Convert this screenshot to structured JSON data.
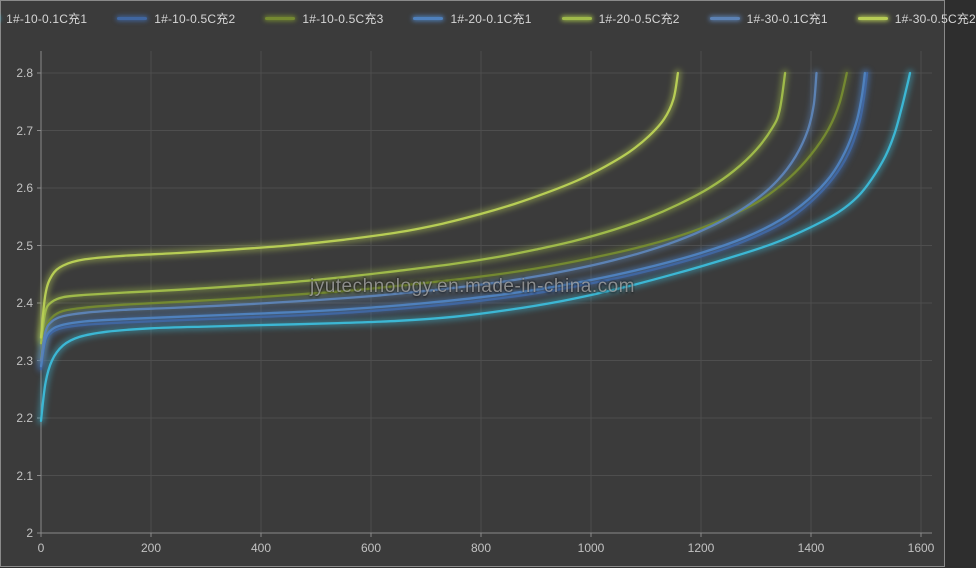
{
  "watermark": "jyutechnology.en.made-in-china.com",
  "colors": {
    "background": "#3b3b3b",
    "grid": "#4e4e4e",
    "axis": "#8a8a8a",
    "tick_label": "#c2c2c2",
    "legend_text": "#d6d6d6",
    "watermark": "#9e9e9e"
  },
  "chart_data": {
    "type": "line",
    "title": "",
    "xlabel": "",
    "ylabel": "",
    "xlim": [
      0,
      1600
    ],
    "ylim": [
      2.0,
      2.8
    ],
    "grid": true,
    "legend_position": "top",
    "x_ticks": [
      {
        "label": "0",
        "value": 0
      },
      {
        "label": "200",
        "value": 200
      },
      {
        "label": "400",
        "value": 400
      },
      {
        "label": "600",
        "value": 600
      },
      {
        "label": "800",
        "value": 800
      },
      {
        "label": "1000",
        "value": 1000
      },
      {
        "label": "1200",
        "value": 1200
      },
      {
        "label": "1400",
        "value": 1400
      },
      {
        "label": "1600",
        "value": 1600
      }
    ],
    "y_ticks": [
      {
        "label": "2",
        "value": 2.0
      },
      {
        "label": "2.1",
        "value": 2.1
      },
      {
        "label": "2.2",
        "value": 2.2
      },
      {
        "label": "2.3",
        "value": 2.3
      },
      {
        "label": "2.4",
        "value": 2.4
      },
      {
        "label": "2.5",
        "value": 2.5
      },
      {
        "label": "2.6",
        "value": 2.6
      },
      {
        "label": "2.7",
        "value": 2.7
      },
      {
        "label": "2.8",
        "value": 2.8
      }
    ],
    "series": [
      {
        "name": "1#-10-0.1C充1",
        "color": "#3cb7d4",
        "points": [
          [
            0,
            2.195
          ],
          [
            8,
            2.26
          ],
          [
            20,
            2.3
          ],
          [
            40,
            2.326
          ],
          [
            70,
            2.341
          ],
          [
            120,
            2.35
          ],
          [
            200,
            2.356
          ],
          [
            300,
            2.359
          ],
          [
            420,
            2.362
          ],
          [
            540,
            2.365
          ],
          [
            650,
            2.369
          ],
          [
            750,
            2.376
          ],
          [
            850,
            2.388
          ],
          [
            950,
            2.404
          ],
          [
            1050,
            2.425
          ],
          [
            1150,
            2.45
          ],
          [
            1250,
            2.478
          ],
          [
            1330,
            2.503
          ],
          [
            1400,
            2.532
          ],
          [
            1450,
            2.558
          ],
          [
            1485,
            2.585
          ],
          [
            1510,
            2.615
          ],
          [
            1535,
            2.655
          ],
          [
            1552,
            2.695
          ],
          [
            1565,
            2.74
          ],
          [
            1574,
            2.775
          ],
          [
            1580,
            2.8
          ]
        ]
      },
      {
        "name": "1#-10-0.5C充2",
        "color": "#4066a0",
        "points": [
          [
            0,
            2.285
          ],
          [
            8,
            2.332
          ],
          [
            20,
            2.349
          ],
          [
            40,
            2.357
          ],
          [
            80,
            2.362
          ],
          [
            150,
            2.366
          ],
          [
            250,
            2.37
          ],
          [
            380,
            2.375
          ],
          [
            500,
            2.38
          ],
          [
            600,
            2.386
          ],
          [
            700,
            2.394
          ],
          [
            800,
            2.404
          ],
          [
            900,
            2.417
          ],
          [
            1000,
            2.434
          ],
          [
            1100,
            2.455
          ],
          [
            1200,
            2.481
          ],
          [
            1280,
            2.508
          ],
          [
            1350,
            2.54
          ],
          [
            1400,
            2.576
          ],
          [
            1440,
            2.617
          ],
          [
            1468,
            2.66
          ],
          [
            1487,
            2.71
          ],
          [
            1496,
            2.755
          ],
          [
            1502,
            2.8
          ]
        ]
      },
      {
        "name": "1#-10-0.5C充3",
        "color": "#748931",
        "points": [
          [
            0,
            2.305
          ],
          [
            8,
            2.355
          ],
          [
            20,
            2.375
          ],
          [
            40,
            2.386
          ],
          [
            80,
            2.392
          ],
          [
            150,
            2.397
          ],
          [
            250,
            2.402
          ],
          [
            380,
            2.409
          ],
          [
            500,
            2.417
          ],
          [
            600,
            2.425
          ],
          [
            700,
            2.435
          ],
          [
            800,
            2.446
          ],
          [
            900,
            2.46
          ],
          [
            1000,
            2.478
          ],
          [
            1100,
            2.5
          ],
          [
            1180,
            2.523
          ],
          [
            1250,
            2.55
          ],
          [
            1310,
            2.58
          ],
          [
            1360,
            2.617
          ],
          [
            1400,
            2.658
          ],
          [
            1432,
            2.703
          ],
          [
            1452,
            2.748
          ],
          [
            1465,
            2.8
          ]
        ]
      },
      {
        "name": "1#-20-0.1C充1",
        "color": "#4f81bd",
        "points": [
          [
            0,
            2.29
          ],
          [
            8,
            2.337
          ],
          [
            20,
            2.354
          ],
          [
            40,
            2.362
          ],
          [
            80,
            2.368
          ],
          [
            150,
            2.372
          ],
          [
            250,
            2.376
          ],
          [
            380,
            2.381
          ],
          [
            500,
            2.386
          ],
          [
            600,
            2.392
          ],
          [
            700,
            2.4
          ],
          [
            800,
            2.41
          ],
          [
            900,
            2.423
          ],
          [
            1000,
            2.44
          ],
          [
            1100,
            2.461
          ],
          [
            1200,
            2.487
          ],
          [
            1280,
            2.514
          ],
          [
            1345,
            2.545
          ],
          [
            1395,
            2.58
          ],
          [
            1435,
            2.62
          ],
          [
            1462,
            2.663
          ],
          [
            1482,
            2.713
          ],
          [
            1492,
            2.757
          ],
          [
            1498,
            2.8
          ]
        ]
      },
      {
        "name": "1#-20-0.5C充2",
        "color": "#9fba4a",
        "points": [
          [
            0,
            2.33
          ],
          [
            8,
            2.385
          ],
          [
            20,
            2.402
          ],
          [
            40,
            2.41
          ],
          [
            80,
            2.414
          ],
          [
            150,
            2.418
          ],
          [
            250,
            2.423
          ],
          [
            350,
            2.429
          ],
          [
            450,
            2.436
          ],
          [
            550,
            2.445
          ],
          [
            650,
            2.456
          ],
          [
            750,
            2.468
          ],
          [
            830,
            2.48
          ],
          [
            900,
            2.493
          ],
          [
            970,
            2.508
          ],
          [
            1040,
            2.527
          ],
          [
            1100,
            2.547
          ],
          [
            1160,
            2.572
          ],
          [
            1215,
            2.6
          ],
          [
            1260,
            2.63
          ],
          [
            1300,
            2.666
          ],
          [
            1330,
            2.705
          ],
          [
            1343,
            2.735
          ],
          [
            1353,
            2.8
          ]
        ]
      },
      {
        "name": "1#-30-0.1C充1",
        "color": "#5c82b4",
        "points": [
          [
            0,
            2.3
          ],
          [
            8,
            2.35
          ],
          [
            20,
            2.368
          ],
          [
            40,
            2.377
          ],
          [
            80,
            2.383
          ],
          [
            150,
            2.388
          ],
          [
            250,
            2.392
          ],
          [
            380,
            2.398
          ],
          [
            500,
            2.405
          ],
          [
            600,
            2.412
          ],
          [
            700,
            2.421
          ],
          [
            800,
            2.432
          ],
          [
            880,
            2.443
          ],
          [
            960,
            2.457
          ],
          [
            1040,
            2.474
          ],
          [
            1120,
            2.496
          ],
          [
            1190,
            2.521
          ],
          [
            1250,
            2.549
          ],
          [
            1300,
            2.58
          ],
          [
            1340,
            2.614
          ],
          [
            1372,
            2.655
          ],
          [
            1394,
            2.7
          ],
          [
            1405,
            2.745
          ],
          [
            1410,
            2.8
          ]
        ]
      },
      {
        "name": "1#-30-0.5C充2",
        "color": "#b7cd55",
        "points": [
          [
            0,
            2.34
          ],
          [
            8,
            2.415
          ],
          [
            20,
            2.448
          ],
          [
            40,
            2.465
          ],
          [
            80,
            2.476
          ],
          [
            150,
            2.482
          ],
          [
            250,
            2.487
          ],
          [
            350,
            2.493
          ],
          [
            450,
            2.5
          ],
          [
            550,
            2.51
          ],
          [
            650,
            2.523
          ],
          [
            730,
            2.538
          ],
          [
            800,
            2.555
          ],
          [
            860,
            2.572
          ],
          [
            920,
            2.592
          ],
          [
            975,
            2.613
          ],
          [
            1025,
            2.637
          ],
          [
            1070,
            2.663
          ],
          [
            1105,
            2.69
          ],
          [
            1133,
            2.72
          ],
          [
            1150,
            2.755
          ],
          [
            1158,
            2.8
          ]
        ]
      }
    ]
  }
}
